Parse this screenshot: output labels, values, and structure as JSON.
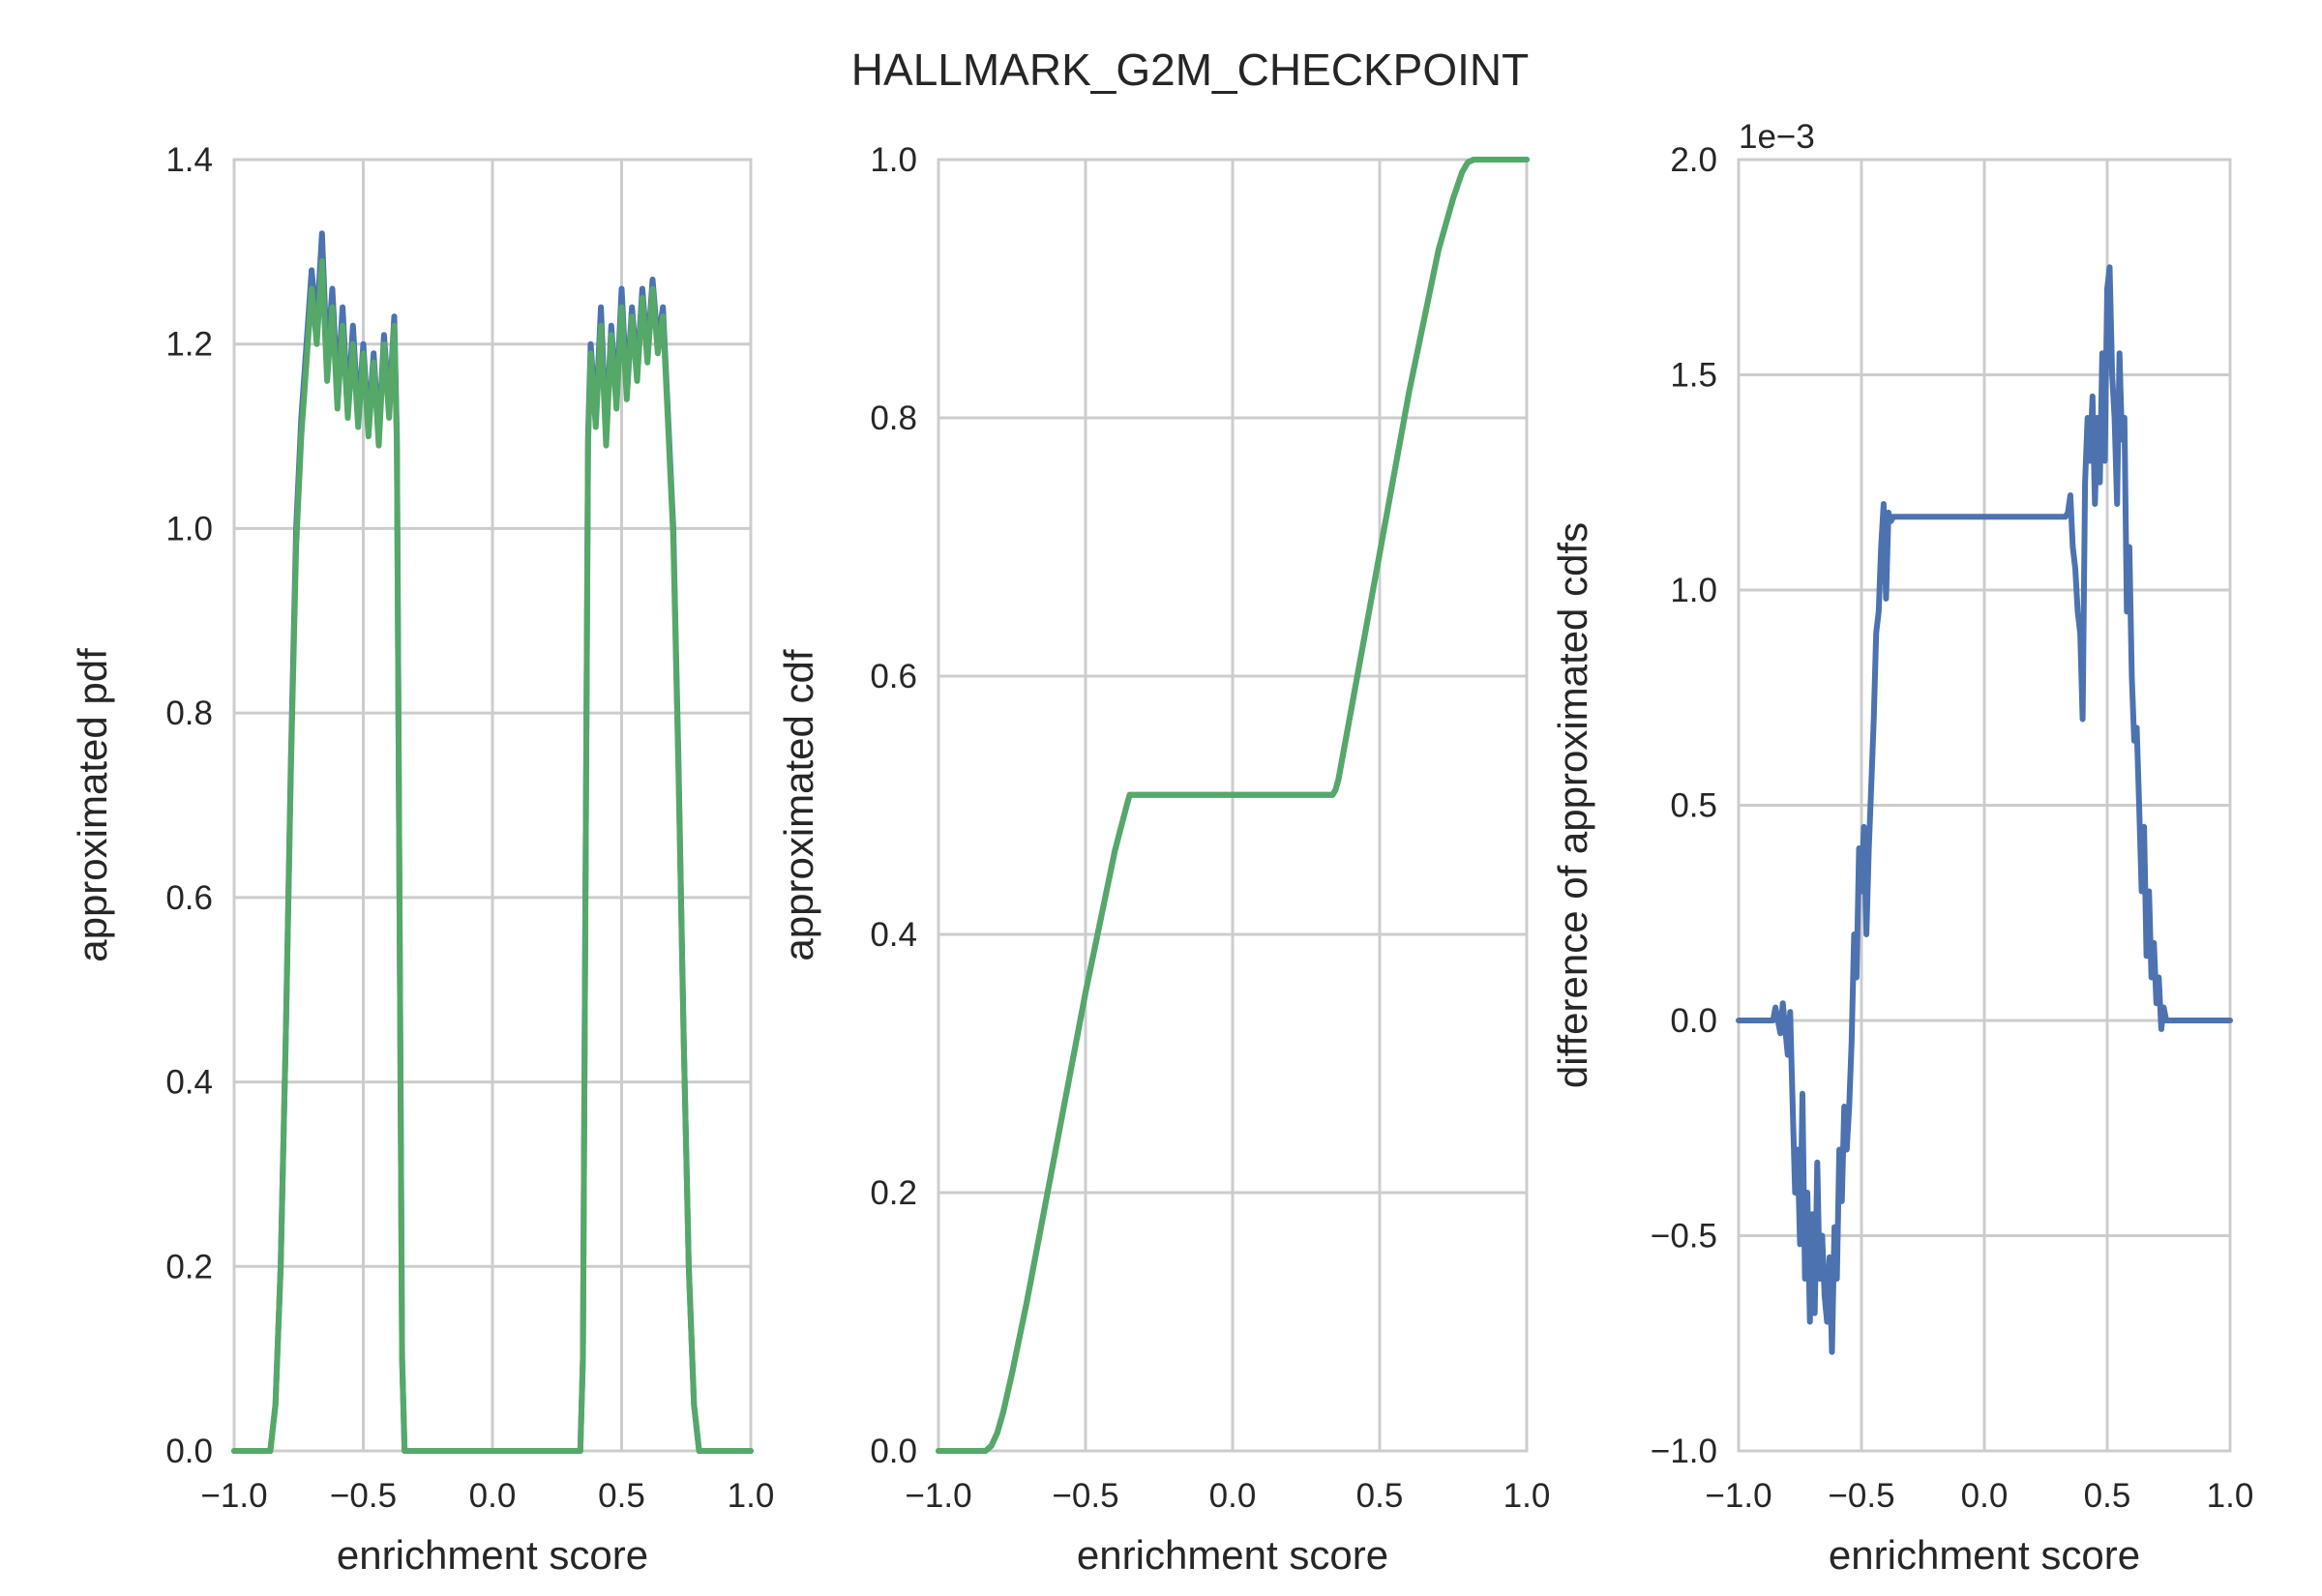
{
  "figure": {
    "title": "HALLMARK_G2M_CHECKPOINT"
  },
  "colors": {
    "series_blue": "#4C72B0",
    "series_green": "#55A868",
    "grid": "#cccccc",
    "text": "#262626"
  },
  "chart_data": [
    {
      "type": "line",
      "title": "",
      "xlabel": "enrichment score",
      "ylabel": "approximated pdf",
      "xlim": [
        -1.0,
        1.0
      ],
      "ylim": [
        0.0,
        1.4
      ],
      "xticks": [
        "−1.0",
        "−0.5",
        "0.0",
        "0.5",
        "1.0"
      ],
      "yticks": [
        "0.0",
        "0.2",
        "0.4",
        "0.6",
        "0.8",
        "1.0",
        "1.2",
        "1.4"
      ],
      "grid": true,
      "series": [
        {
          "color": "#4C72B0",
          "x": [
            -1.0,
            -0.86,
            -0.84,
            -0.82,
            -0.8,
            -0.78,
            -0.76,
            -0.74,
            -0.72,
            -0.7,
            -0.68,
            -0.66,
            -0.64,
            -0.62,
            -0.6,
            -0.58,
            -0.56,
            -0.54,
            -0.52,
            -0.5,
            -0.48,
            -0.46,
            -0.44,
            -0.42,
            -0.4,
            -0.38,
            -0.37,
            -0.36,
            -0.35,
            -0.34,
            0.34,
            0.35,
            0.36,
            0.37,
            0.38,
            0.4,
            0.42,
            0.44,
            0.46,
            0.48,
            0.5,
            0.52,
            0.54,
            0.56,
            0.58,
            0.6,
            0.62,
            0.64,
            0.66,
            0.68,
            0.7,
            0.72,
            0.74,
            0.76,
            0.78,
            0.8,
            0.82,
            0.84,
            0.86,
            1.0
          ],
          "y": [
            0.0,
            0.0,
            0.05,
            0.2,
            0.45,
            0.75,
            1.0,
            1.12,
            1.2,
            1.28,
            1.22,
            1.32,
            1.18,
            1.26,
            1.15,
            1.24,
            1.13,
            1.22,
            1.12,
            1.2,
            1.11,
            1.19,
            1.1,
            1.21,
            1.13,
            1.23,
            1.1,
            0.6,
            0.1,
            0.0,
            0.0,
            0.1,
            0.6,
            1.1,
            1.2,
            1.12,
            1.24,
            1.1,
            1.22,
            1.14,
            1.26,
            1.15,
            1.24,
            1.17,
            1.26,
            1.19,
            1.27,
            1.2,
            1.24,
            1.12,
            1.0,
            0.75,
            0.45,
            0.2,
            0.05,
            0.0,
            0.0,
            0.0,
            0.0,
            0.0
          ]
        },
        {
          "color": "#55A868",
          "x": [
            -1.0,
            -0.86,
            -0.84,
            -0.82,
            -0.8,
            -0.78,
            -0.76,
            -0.74,
            -0.72,
            -0.7,
            -0.68,
            -0.66,
            -0.64,
            -0.62,
            -0.6,
            -0.58,
            -0.56,
            -0.54,
            -0.52,
            -0.5,
            -0.48,
            -0.46,
            -0.44,
            -0.42,
            -0.4,
            -0.38,
            -0.37,
            -0.36,
            -0.35,
            -0.34,
            0.34,
            0.35,
            0.36,
            0.37,
            0.38,
            0.4,
            0.42,
            0.44,
            0.46,
            0.48,
            0.5,
            0.52,
            0.54,
            0.56,
            0.58,
            0.6,
            0.62,
            0.64,
            0.66,
            0.68,
            0.7,
            0.72,
            0.74,
            0.76,
            0.78,
            0.8,
            0.82,
            0.84,
            0.86,
            1.0
          ],
          "y": [
            0.0,
            0.0,
            0.05,
            0.2,
            0.45,
            0.74,
            0.98,
            1.1,
            1.18,
            1.26,
            1.2,
            1.29,
            1.16,
            1.24,
            1.13,
            1.22,
            1.12,
            1.2,
            1.11,
            1.19,
            1.1,
            1.18,
            1.09,
            1.2,
            1.12,
            1.22,
            1.09,
            0.6,
            0.1,
            0.0,
            0.0,
            0.1,
            0.6,
            1.09,
            1.19,
            1.11,
            1.22,
            1.09,
            1.21,
            1.13,
            1.24,
            1.14,
            1.23,
            1.16,
            1.25,
            1.18,
            1.26,
            1.19,
            1.23,
            1.11,
            0.99,
            0.74,
            0.45,
            0.2,
            0.05,
            0.0,
            0.0,
            0.0,
            0.0,
            0.0
          ]
        }
      ]
    },
    {
      "type": "line",
      "title": "",
      "xlabel": "enrichment score",
      "ylabel": "approximated cdf",
      "xlim": [
        -1.0,
        1.0
      ],
      "ylim": [
        0.0,
        1.0
      ],
      "xticks": [
        "−1.0",
        "−0.5",
        "0.0",
        "0.5",
        "1.0"
      ],
      "yticks": [
        "0.0",
        "0.2",
        "0.4",
        "0.6",
        "0.8",
        "1.0"
      ],
      "grid": true,
      "series": [
        {
          "color": "#4C72B0",
          "x": [
            -1.0,
            -0.84,
            -0.82,
            -0.8,
            -0.78,
            -0.75,
            -0.7,
            -0.6,
            -0.5,
            -0.4,
            -0.36,
            -0.35,
            0.34,
            0.35,
            0.36,
            0.4,
            0.5,
            0.6,
            0.7,
            0.75,
            0.78,
            0.8,
            0.82,
            0.84,
            1.0
          ],
          "y": [
            0.0,
            0.0,
            0.004,
            0.014,
            0.03,
            0.06,
            0.115,
            0.235,
            0.355,
            0.465,
            0.5,
            0.508,
            0.508,
            0.512,
            0.52,
            0.57,
            0.695,
            0.82,
            0.93,
            0.97,
            0.99,
            0.998,
            1.0,
            1.0,
            1.0
          ]
        },
        {
          "color": "#55A868",
          "x": [
            -1.0,
            -0.84,
            -0.82,
            -0.8,
            -0.78,
            -0.75,
            -0.7,
            -0.6,
            -0.5,
            -0.4,
            -0.36,
            -0.35,
            0.34,
            0.35,
            0.36,
            0.4,
            0.5,
            0.6,
            0.7,
            0.75,
            0.78,
            0.8,
            0.82,
            0.84,
            1.0
          ],
          "y": [
            0.0,
            0.0,
            0.004,
            0.014,
            0.03,
            0.06,
            0.115,
            0.235,
            0.355,
            0.465,
            0.5,
            0.508,
            0.508,
            0.512,
            0.52,
            0.57,
            0.695,
            0.82,
            0.93,
            0.97,
            0.99,
            0.998,
            1.0,
            1.0,
            1.0
          ]
        }
      ]
    },
    {
      "type": "line",
      "title": "",
      "xlabel": "enrichment score",
      "ylabel": "difference of approximated cdfs",
      "xlim": [
        -1.0,
        1.0
      ],
      "ylim": [
        -0.001,
        0.002
      ],
      "offset_label": "1e−3",
      "xticks": [
        "−1.0",
        "−0.5",
        "0.0",
        "0.5",
        "1.0"
      ],
      "ytick_values": [
        -0.001,
        -0.0005,
        0.0,
        0.0005,
        0.001,
        0.0015,
        0.002
      ],
      "yticks": [
        "−1.0",
        "−0.5",
        "0.0",
        "0.5",
        "1.0",
        "1.5",
        "2.0"
      ],
      "grid": true,
      "series": [
        {
          "color": "#4C72B0",
          "x": [
            -1.0,
            -0.86,
            -0.85,
            -0.83,
            -0.82,
            -0.8,
            -0.79,
            -0.78,
            -0.77,
            -0.76,
            -0.75,
            -0.74,
            -0.73,
            -0.72,
            -0.71,
            -0.7,
            -0.69,
            -0.68,
            -0.67,
            -0.66,
            -0.65,
            -0.64,
            -0.63,
            -0.62,
            -0.61,
            -0.6,
            -0.59,
            -0.58,
            -0.57,
            -0.56,
            -0.55,
            -0.54,
            -0.53,
            -0.52,
            -0.51,
            -0.5,
            -0.49,
            -0.48,
            -0.47,
            -0.46,
            -0.45,
            -0.44,
            -0.43,
            -0.42,
            -0.41,
            -0.4,
            -0.39,
            -0.38,
            -0.37,
            -0.36,
            0.33,
            0.34,
            0.35,
            0.36,
            0.37,
            0.38,
            0.39,
            0.4,
            0.41,
            0.42,
            0.43,
            0.44,
            0.45,
            0.46,
            0.47,
            0.48,
            0.49,
            0.5,
            0.51,
            0.52,
            0.53,
            0.54,
            0.55,
            0.56,
            0.57,
            0.58,
            0.59,
            0.6,
            0.61,
            0.62,
            0.63,
            0.64,
            0.65,
            0.66,
            0.67,
            0.68,
            0.69,
            0.7,
            0.71,
            0.72,
            0.73,
            0.74,
            0.75,
            0.76,
            0.77,
            0.78,
            0.8,
            1.0
          ],
          "y": [
            0.0,
            0.0,
            3e-05,
            -3e-05,
            4e-05,
            -8e-05,
            2e-05,
            -0.0002,
            -0.0004,
            -0.0003,
            -0.00052,
            -0.00017,
            -0.0006,
            -0.0004,
            -0.0007,
            -0.00045,
            -0.00068,
            -0.00033,
            -0.0006,
            -0.0005,
            -0.00064,
            -0.0007,
            -0.00055,
            -0.00077,
            -0.00048,
            -0.0006,
            -0.0003,
            -0.00042,
            -0.0002,
            -0.0003,
            -0.0002,
            -5e-05,
            0.0002,
            0.0001,
            0.0004,
            0.0003,
            0.00045,
            0.0002,
            0.0004,
            0.00055,
            0.0007,
            0.0009,
            0.00095,
            0.0011,
            0.0012,
            0.00098,
            0.00118,
            0.00116,
            0.00117,
            0.00117,
            0.00117,
            0.00118,
            0.00122,
            0.0011,
            0.00105,
            0.00095,
            0.0009,
            0.0007,
            0.00125,
            0.0014,
            0.0013,
            0.00145,
            0.0012,
            0.0014,
            0.00125,
            0.00155,
            0.0013,
            0.0017,
            0.00175,
            0.0015,
            0.0014,
            0.0012,
            0.00155,
            0.00135,
            0.0014,
            0.00095,
            0.0011,
            0.0008,
            0.00065,
            0.00068,
            0.0005,
            0.0003,
            0.00045,
            0.00015,
            0.0003,
            0.0001,
            0.00018,
            4e-05,
            0.0001,
            -2e-05,
            3e-05,
            0.0,
            0.0,
            0.0,
            0.0,
            0.0,
            0.0,
            0.0
          ]
        }
      ]
    }
  ]
}
